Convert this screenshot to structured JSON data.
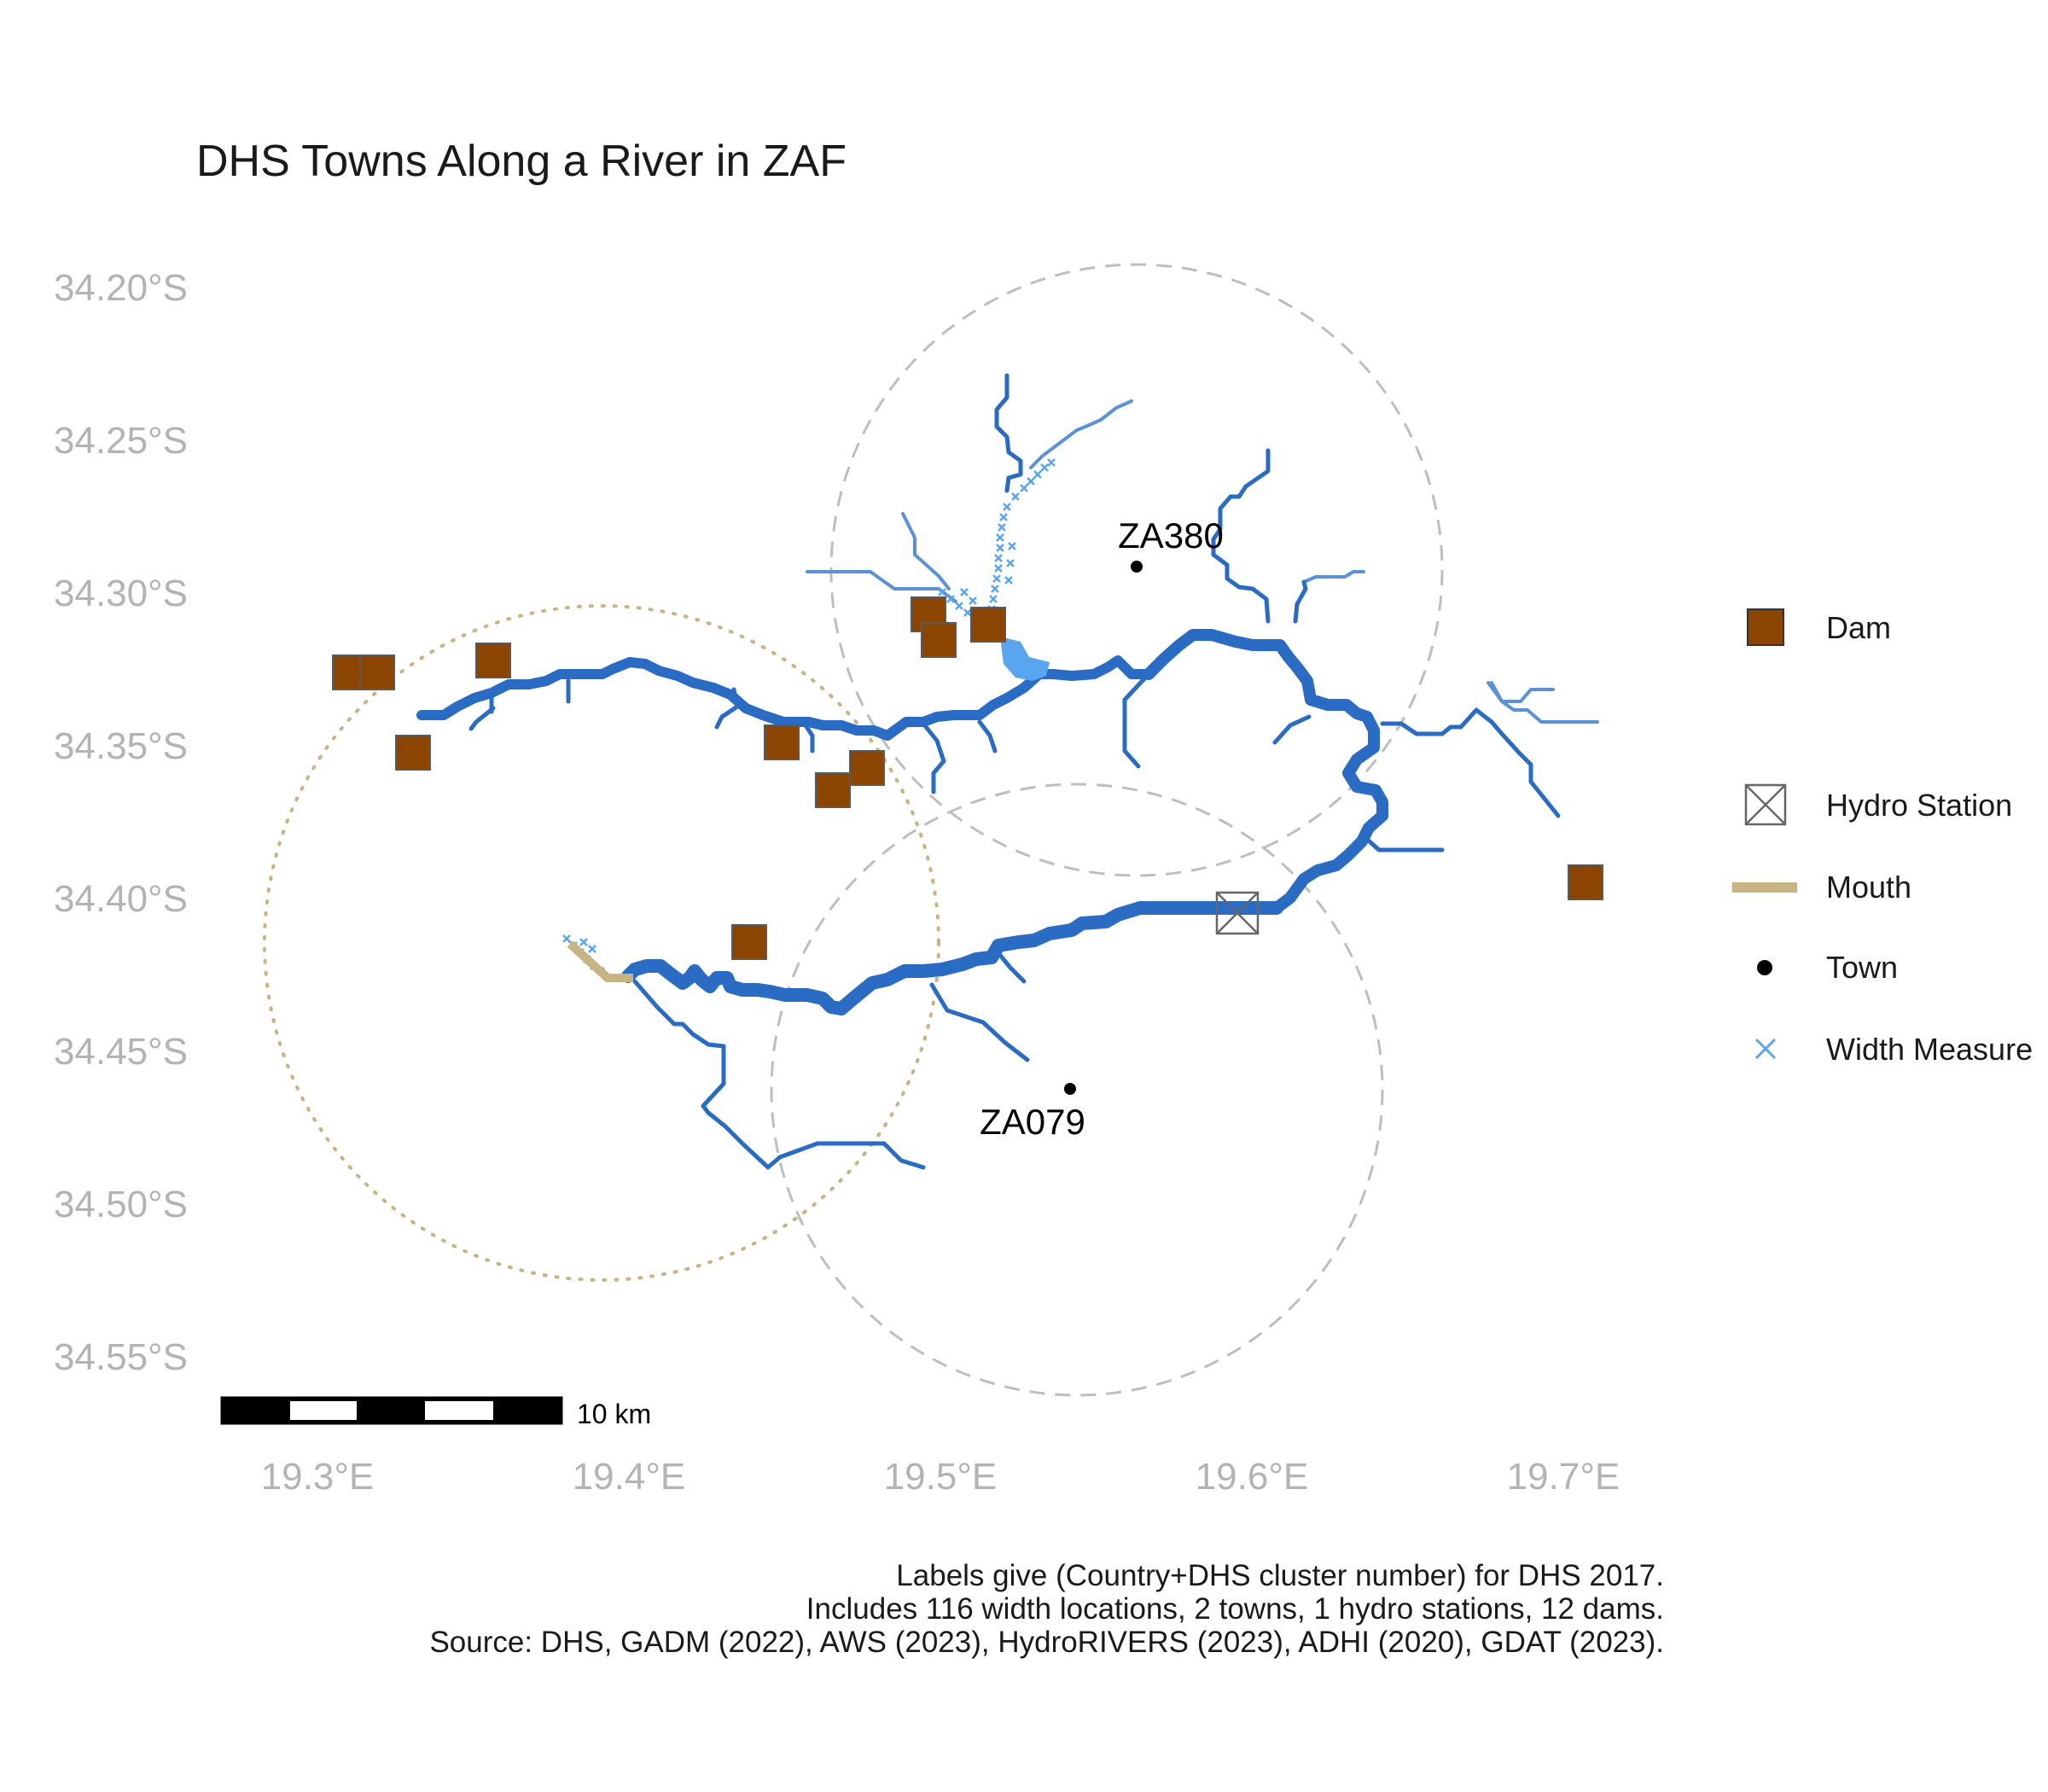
{
  "title": "DHS Towns Along a River in ZAF",
  "axes": {
    "y_ticks": [
      "34.20°S",
      "34.25°S",
      "34.30°S",
      "34.35°S",
      "34.40°S",
      "34.45°S",
      "34.50°S",
      "34.55°S"
    ],
    "x_ticks": [
      "19.3°E",
      "19.4°E",
      "19.5°E",
      "19.6°E",
      "19.7°E"
    ]
  },
  "towns": [
    {
      "label": "ZA380"
    },
    {
      "label": "ZA079"
    }
  ],
  "legend": {
    "items": [
      {
        "label": "Dam",
        "symbol": "filled-square",
        "color": "#8B4500"
      },
      {
        "label": "Hydro Station",
        "symbol": "crossed-square",
        "color": "#666666"
      },
      {
        "label": "Mouth",
        "symbol": "line",
        "color": "#C8B383"
      },
      {
        "label": "Town",
        "symbol": "dot",
        "color": "#000000"
      },
      {
        "label": "Width Measure",
        "symbol": "x-mark",
        "color": "#5AA5F0"
      }
    ]
  },
  "scale_bar": {
    "label": "10 km"
  },
  "caption": {
    "line1": "Labels give (Country+DHS cluster number) for DHS 2017.",
    "line2": "Includes 116 width locations, 2 towns, 1 hydro stations, 12 dams.",
    "line3": "Source: DHS, GADM (2022), AWS (2023), HydroRIVERS (2023), ADHI (2020), GDAT (2023)."
  },
  "colors": {
    "river_main": "#2A6CC4",
    "river_tributary": "#5B92D6",
    "dam": "#8B4500",
    "width_measure": "#5AA5F0",
    "mouth": "#C8B383",
    "buffer_circle": "#BEBEBE",
    "mouth_circle": "#C8B383"
  }
}
